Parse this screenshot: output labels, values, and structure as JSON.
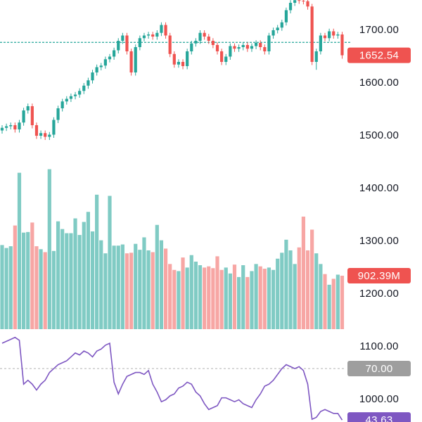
{
  "chart_data": {
    "type": "candlestick",
    "price": {
      "ylim": [
        957.33,
        1757.33
      ],
      "yticks": [
        {
          "value": 1700,
          "label": "1700.00"
        },
        {
          "value": 1600,
          "label": "1600.00"
        },
        {
          "value": 1500,
          "label": "1500.00"
        },
        {
          "value": 1400,
          "label": "1400.00"
        },
        {
          "value": 1300,
          "label": "1300.00"
        },
        {
          "value": 1200,
          "label": "1200.00"
        },
        {
          "value": 1100,
          "label": "1100.00"
        },
        {
          "value": 1000,
          "label": "1000.00"
        }
      ],
      "reference_price": 1677,
      "up_color": "#26a69a",
      "down_color": "#ef5350",
      "open": [
        1510,
        1515,
        1518,
        1520,
        1512,
        1525,
        1548,
        1556,
        1520,
        1500,
        1505,
        1498,
        1502,
        1530,
        1552,
        1565,
        1570,
        1575,
        1578,
        1585,
        1595,
        1605,
        1620,
        1630,
        1633,
        1645,
        1650,
        1662,
        1680,
        1690,
        1660,
        1620,
        1668,
        1685,
        1690,
        1692,
        1688,
        1695,
        1710,
        1690,
        1655,
        1635,
        1640,
        1632,
        1660,
        1675,
        1680,
        1695,
        1688,
        1680,
        1672,
        1660,
        1640,
        1650,
        1670,
        1665,
        1668,
        1672,
        1665,
        1670,
        1676,
        1668,
        1660,
        1690,
        1700,
        1705,
        1715,
        1738,
        1752,
        1757,
        1756,
        1755,
        1745,
        1640,
        1660,
        1690,
        1685,
        1698,
        1690,
        1692
      ],
      "high": [
        1520,
        1523,
        1525,
        1525,
        1530,
        1553,
        1561,
        1561,
        1525,
        1510,
        1510,
        1507,
        1535,
        1557,
        1570,
        1575,
        1580,
        1583,
        1590,
        1600,
        1610,
        1625,
        1635,
        1638,
        1650,
        1655,
        1667,
        1685,
        1695,
        1695,
        1665,
        1673,
        1690,
        1695,
        1697,
        1697,
        1700,
        1715,
        1715,
        1695,
        1660,
        1645,
        1645,
        1665,
        1680,
        1685,
        1700,
        1700,
        1693,
        1685,
        1677,
        1665,
        1655,
        1675,
        1675,
        1673,
        1677,
        1677,
        1675,
        1681,
        1681,
        1673,
        1695,
        1705,
        1710,
        1720,
        1743,
        1757,
        1762,
        1762,
        1761,
        1760,
        1750,
        1665,
        1695,
        1695,
        1703,
        1703,
        1697,
        1697
      ],
      "low": [
        1504,
        1509,
        1512,
        1506,
        1506,
        1519,
        1542,
        1514,
        1494,
        1494,
        1492,
        1492,
        1496,
        1524,
        1546,
        1559,
        1564,
        1569,
        1572,
        1579,
        1589,
        1599,
        1614,
        1624,
        1627,
        1639,
        1644,
        1656,
        1674,
        1654,
        1614,
        1614,
        1662,
        1679,
        1684,
        1682,
        1682,
        1689,
        1684,
        1649,
        1629,
        1629,
        1626,
        1626,
        1654,
        1669,
        1674,
        1682,
        1674,
        1666,
        1654,
        1634,
        1634,
        1644,
        1659,
        1659,
        1662,
        1659,
        1659,
        1664,
        1662,
        1654,
        1654,
        1684,
        1694,
        1699,
        1709,
        1732,
        1746,
        1750,
        1749,
        1739,
        1634,
        1625,
        1654,
        1679,
        1679,
        1684,
        1684,
        1646
      ],
      "close": [
        1515,
        1518,
        1520,
        1512,
        1525,
        1548,
        1556,
        1520,
        1500,
        1505,
        1498,
        1502,
        1530,
        1552,
        1565,
        1570,
        1575,
        1578,
        1585,
        1595,
        1605,
        1620,
        1630,
        1633,
        1645,
        1650,
        1662,
        1680,
        1690,
        1660,
        1620,
        1668,
        1685,
        1690,
        1692,
        1688,
        1695,
        1710,
        1690,
        1655,
        1635,
        1640,
        1632,
        1660,
        1675,
        1680,
        1695,
        1688,
        1680,
        1672,
        1660,
        1640,
        1650,
        1670,
        1665,
        1668,
        1672,
        1665,
        1670,
        1676,
        1668,
        1660,
        1690,
        1700,
        1705,
        1715,
        1738,
        1752,
        1757,
        1756,
        1755,
        1745,
        1640,
        1660,
        1690,
        1685,
        1698,
        1690,
        1692,
        1652.54
      ]
    },
    "volume": {
      "ylim": [
        0,
        2707
      ],
      "up_color": "#80cbc4",
      "down_color": "#f7a6a4",
      "last_label": "902.39M",
      "values": [
        1420,
        1370,
        1400,
        1750,
        2640,
        1630,
        1640,
        1800,
        1400,
        1350,
        1300,
        2700,
        1320,
        1820,
        1690,
        1620,
        1620,
        1870,
        1590,
        1810,
        1980,
        1650,
        2270,
        1500,
        1280,
        2250,
        1410,
        1410,
        1430,
        1280,
        1290,
        1440,
        1340,
        1550,
        1330,
        1300,
        1760,
        1500,
        1360,
        1100,
        1000,
        980,
        1210,
        1040,
        1250,
        1140,
        1080,
        1040,
        1060,
        1030,
        1230,
        1000,
        1040,
        940,
        1090,
        880,
        1080,
        880,
        980,
        1100,
        1060,
        1020,
        1040,
        1000,
        1190,
        1290,
        1510,
        1330,
        1100,
        1380,
        1900,
        1330,
        1680,
        1280,
        1100,
        930,
        750,
        850,
        920,
        902.39
      ]
    },
    "rsi": {
      "ylim": [
        42.6,
        89.5
      ],
      "color": "#7e57c2",
      "upper": {
        "value": 70,
        "label": "70.00"
      },
      "values": [
        83,
        84,
        85,
        86,
        84.5,
        62,
        64,
        62,
        59,
        62,
        64,
        68,
        70,
        72,
        73,
        74,
        76,
        78,
        77,
        79,
        78,
        76,
        79,
        80,
        82,
        83,
        63,
        57,
        62,
        66,
        67,
        68,
        68,
        67,
        69,
        62,
        58,
        53,
        54,
        56,
        57,
        60,
        61,
        63,
        62,
        58,
        56,
        52,
        49,
        50,
        51,
        55,
        55,
        54,
        53,
        54,
        52,
        51,
        50,
        54,
        57,
        61,
        62,
        64,
        67,
        70,
        72,
        71,
        70,
        71,
        69,
        62,
        44,
        45,
        48,
        49,
        48,
        47,
        47,
        43.63
      ]
    }
  }
}
